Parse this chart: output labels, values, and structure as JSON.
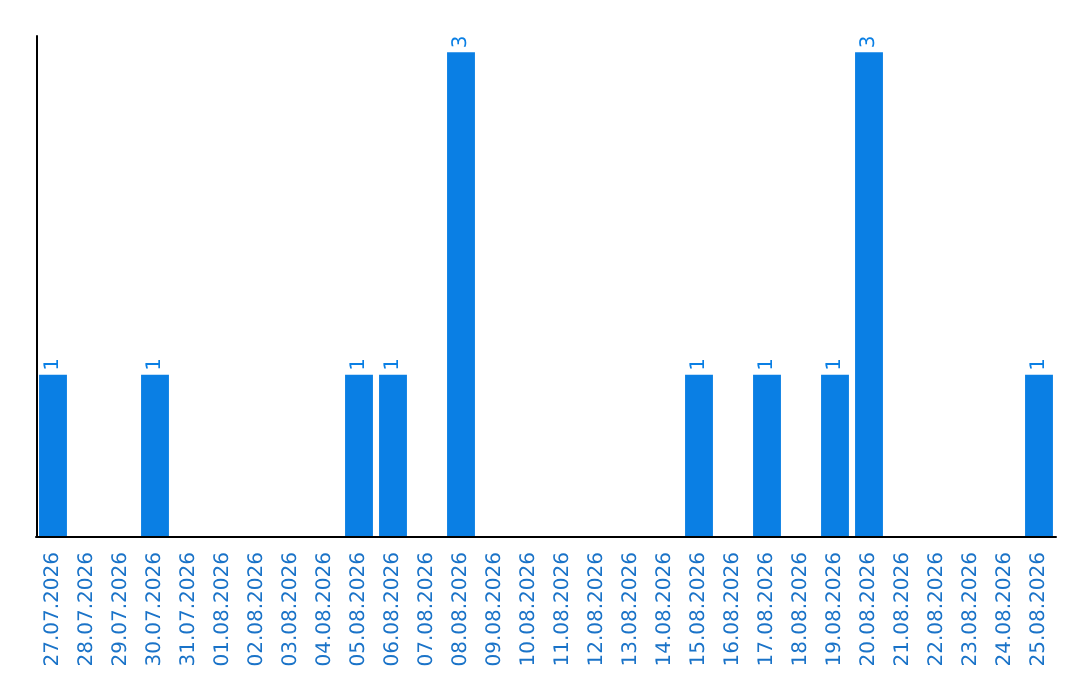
{
  "chart_data": {
    "type": "bar",
    "categories": [
      "27.07.2026",
      "28.07.2026",
      "29.07.2026",
      "30.07.2026",
      "31.07.2026",
      "01.08.2026",
      "02.08.2026",
      "03.08.2026",
      "04.08.2026",
      "05.08.2026",
      "06.08.2026",
      "07.08.2026",
      "08.08.2026",
      "09.08.2026",
      "10.08.2026",
      "11.08.2026",
      "12.08.2026",
      "13.08.2026",
      "14.08.2026",
      "15.08.2026",
      "16.08.2026",
      "17.08.2026",
      "18.08.2026",
      "19.08.2026",
      "20.08.2026",
      "21.08.2026",
      "22.08.2026",
      "23.08.2026",
      "24.08.2026",
      "25.08.2026"
    ],
    "values": [
      1,
      0,
      0,
      1,
      0,
      0,
      0,
      0,
      0,
      1,
      1,
      0,
      3,
      0,
      0,
      0,
      0,
      0,
      0,
      1,
      0,
      1,
      0,
      1,
      3,
      0,
      0,
      0,
      0,
      1
    ],
    "value_labels": [
      "1",
      null,
      null,
      "1",
      null,
      null,
      null,
      null,
      null,
      "1",
      "1",
      null,
      "3",
      null,
      null,
      null,
      null,
      null,
      null,
      "1",
      null,
      "1",
      null,
      "1",
      "3",
      null,
      null,
      null,
      null,
      "1"
    ],
    "color": "#0a7fe4",
    "ylim": [
      0,
      3.1
    ],
    "tick_labels": "x",
    "grid": false
  }
}
